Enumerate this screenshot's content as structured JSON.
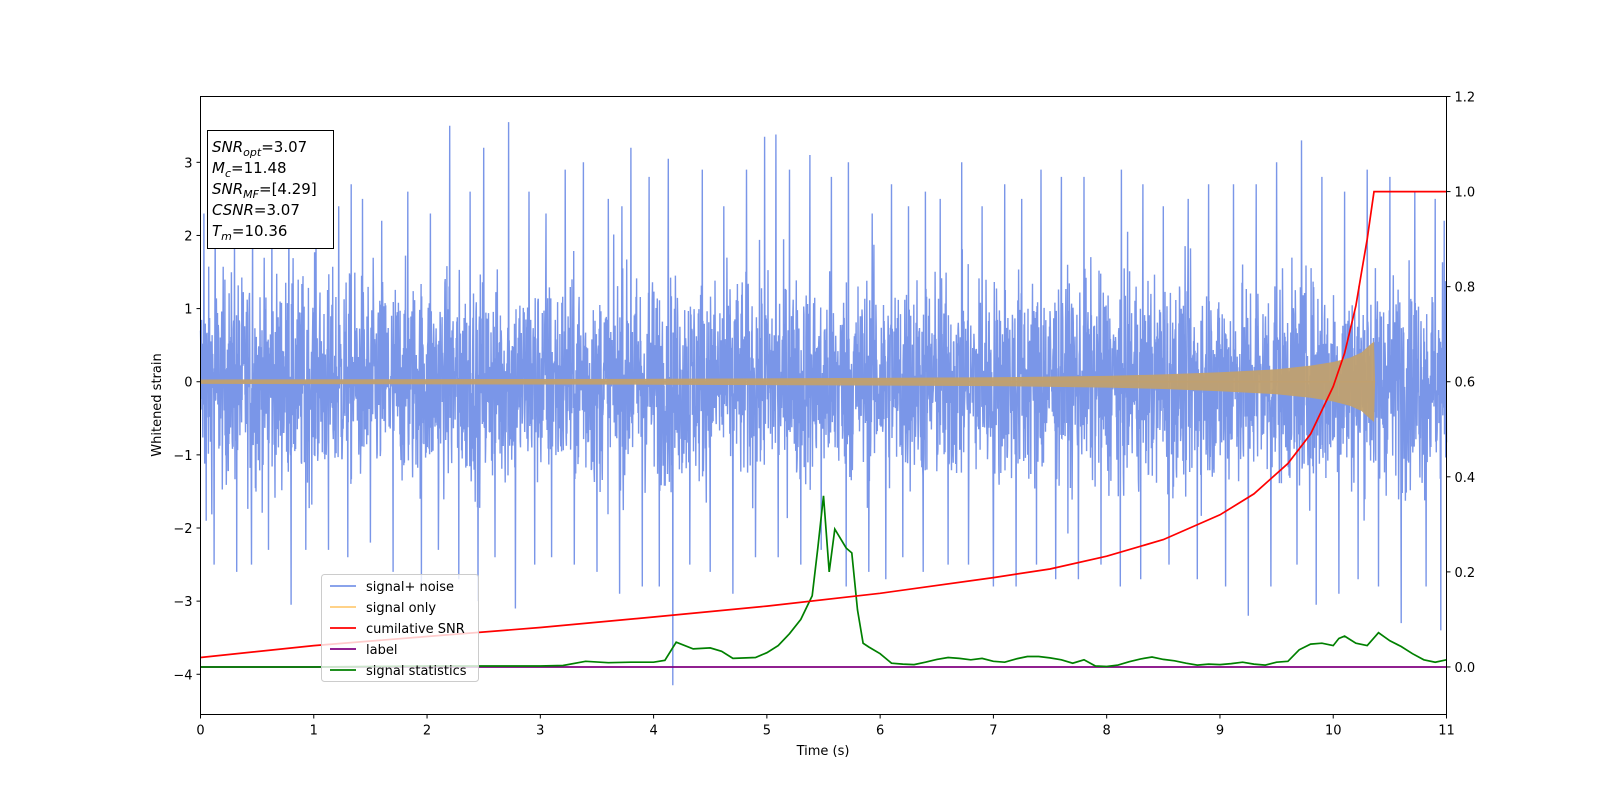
{
  "chart_data": {
    "type": "line",
    "xlabel": "Time (s)",
    "ylabel": "Whitened strain",
    "xlim": [
      0,
      11
    ],
    "ylim": [
      -4.55,
      3.9
    ],
    "y2lim": [
      -0.1,
      1.2
    ],
    "x_ticks": [
      "0",
      "1",
      "2",
      "3",
      "4",
      "5",
      "6",
      "7",
      "8",
      "9",
      "10",
      "11"
    ],
    "y_ticks": [
      "3",
      "2",
      "1",
      "0",
      "−1",
      "−2",
      "−3",
      "−4"
    ],
    "y2_ticks": [
      "1.2",
      "1.0",
      "0.8",
      "0.6",
      "0.4",
      "0.2",
      "0.0"
    ],
    "grid": false,
    "legend_position": "lower-left",
    "series": [
      {
        "name": "signal+ noise",
        "axis": "left",
        "color": "#7a96e8",
        "description_values": {
          "typical_range": [
            -2.2,
            2.2
          ],
          "max": 3.55,
          "min": -4.15
        },
        "spikes_up": [
          [
            0.03,
            2.3
          ],
          [
            0.13,
            2.2
          ],
          [
            0.3,
            2.0
          ],
          [
            0.46,
            2.2
          ],
          [
            0.63,
            2.3
          ],
          [
            0.78,
            2.5
          ],
          [
            1.02,
            2.1
          ],
          [
            1.22,
            2.4
          ],
          [
            1.33,
            2.7
          ],
          [
            1.43,
            2.5
          ],
          [
            1.6,
            2.2
          ],
          [
            1.83,
            2.6
          ],
          [
            2.03,
            2.3
          ],
          [
            2.2,
            3.5
          ],
          [
            2.38,
            2.6
          ],
          [
            2.5,
            3.2
          ],
          [
            2.72,
            3.55
          ],
          [
            2.9,
            2.6
          ],
          [
            3.05,
            2.3
          ],
          [
            3.22,
            2.9
          ],
          [
            3.38,
            3.0
          ],
          [
            3.6,
            2.5
          ],
          [
            3.72,
            2.4
          ],
          [
            3.8,
            3.2
          ],
          [
            3.96,
            2.8
          ],
          [
            4.13,
            3.05
          ],
          [
            4.32,
            2.8
          ],
          [
            4.43,
            2.9
          ],
          [
            4.62,
            2.4
          ],
          [
            4.82,
            2.9
          ],
          [
            4.98,
            3.35
          ],
          [
            5.08,
            3.38
          ],
          [
            5.2,
            2.9
          ],
          [
            5.38,
            3.1
          ],
          [
            5.57,
            2.8
          ],
          [
            5.72,
            3.0
          ],
          [
            5.93,
            2.3
          ],
          [
            6.1,
            2.7
          ],
          [
            6.25,
            2.4
          ],
          [
            6.4,
            2.6
          ],
          [
            6.53,
            2.5
          ],
          [
            6.72,
            3.0
          ],
          [
            6.9,
            2.4
          ],
          [
            7.1,
            2.7
          ],
          [
            7.25,
            2.5
          ],
          [
            7.42,
            2.9
          ],
          [
            7.6,
            2.8
          ],
          [
            7.8,
            2.8
          ],
          [
            7.95,
            2.6
          ],
          [
            8.13,
            2.9
          ],
          [
            8.32,
            2.7
          ],
          [
            8.5,
            2.4
          ],
          [
            8.72,
            2.5
          ],
          [
            8.9,
            2.7
          ],
          [
            9.12,
            2.7
          ],
          [
            9.32,
            2.7
          ],
          [
            9.5,
            3.0
          ],
          [
            9.72,
            3.3
          ],
          [
            9.9,
            2.8
          ],
          [
            10.1,
            2.6
          ],
          [
            10.3,
            2.9
          ],
          [
            10.5,
            2.8
          ],
          [
            10.72,
            2.6
          ],
          [
            10.9,
            2.5
          ],
          [
            10.98,
            2.2
          ]
        ],
        "spikes_down": [
          [
            0.05,
            -1.9
          ],
          [
            0.12,
            -2.5
          ],
          [
            0.32,
            -2.6
          ],
          [
            0.45,
            -2.5
          ],
          [
            0.6,
            -2.3
          ],
          [
            0.8,
            -3.05
          ],
          [
            0.93,
            -2.3
          ],
          [
            1.13,
            -2.3
          ],
          [
            1.3,
            -2.4
          ],
          [
            1.5,
            -2.2
          ],
          [
            1.7,
            -2.6
          ],
          [
            1.95,
            -2.8
          ],
          [
            2.1,
            -2.3
          ],
          [
            2.28,
            -2.7
          ],
          [
            2.45,
            -3.0
          ],
          [
            2.6,
            -2.4
          ],
          [
            2.78,
            -3.1
          ],
          [
            2.95,
            -2.5
          ],
          [
            3.1,
            -2.4
          ],
          [
            3.3,
            -2.5
          ],
          [
            3.5,
            -2.6
          ],
          [
            3.7,
            -2.9
          ],
          [
            3.9,
            -2.8
          ],
          [
            4.05,
            -2.8
          ],
          [
            4.17,
            -4.15
          ],
          [
            4.32,
            -2.5
          ],
          [
            4.5,
            -2.6
          ],
          [
            4.7,
            -2.9
          ],
          [
            4.9,
            -2.4
          ],
          [
            5.1,
            -2.4
          ],
          [
            5.3,
            -2.5
          ],
          [
            5.48,
            -2.3
          ],
          [
            5.7,
            -2.8
          ],
          [
            5.9,
            -2.6
          ],
          [
            6.05,
            -2.7
          ],
          [
            6.2,
            -2.4
          ],
          [
            6.38,
            -2.6
          ],
          [
            6.6,
            -2.5
          ],
          [
            6.78,
            -2.5
          ],
          [
            7.0,
            -2.8
          ],
          [
            7.2,
            -2.8
          ],
          [
            7.38,
            -2.5
          ],
          [
            7.55,
            -2.7
          ],
          [
            7.75,
            -2.7
          ],
          [
            7.95,
            -2.5
          ],
          [
            8.12,
            -2.8
          ],
          [
            8.3,
            -2.7
          ],
          [
            8.55,
            -2.5
          ],
          [
            8.8,
            -2.7
          ],
          [
            9.05,
            -2.8
          ],
          [
            9.25,
            -3.2
          ],
          [
            9.45,
            -2.8
          ],
          [
            9.68,
            -2.5
          ],
          [
            9.85,
            -3.05
          ],
          [
            10.05,
            -2.9
          ],
          [
            10.22,
            -2.7
          ],
          [
            10.4,
            -2.8
          ],
          [
            10.6,
            -3.3
          ],
          [
            10.82,
            -2.8
          ],
          [
            10.95,
            -3.4
          ]
        ]
      },
      {
        "name": "signal only",
        "axis": "left",
        "color": "#ffcc77",
        "envelope": [
          [
            0,
            0.03
          ],
          [
            4,
            0.04
          ],
          [
            7,
            0.06
          ],
          [
            8,
            0.08
          ],
          [
            8.5,
            0.1
          ],
          [
            9,
            0.13
          ],
          [
            9.5,
            0.17
          ],
          [
            9.8,
            0.22
          ],
          [
            10,
            0.27
          ],
          [
            10.15,
            0.33
          ],
          [
            10.25,
            0.4
          ],
          [
            10.32,
            0.5
          ],
          [
            10.36,
            0.55
          ],
          [
            10.37,
            0
          ]
        ]
      },
      {
        "name": "cumilative SNR",
        "axis": "right",
        "color": "#ff0000",
        "points": [
          [
            0,
            0.02
          ],
          [
            1,
            0.045
          ],
          [
            2,
            0.064
          ],
          [
            3,
            0.083
          ],
          [
            4,
            0.105
          ],
          [
            5,
            0.128
          ],
          [
            6,
            0.155
          ],
          [
            7,
            0.188
          ],
          [
            7.5,
            0.206
          ],
          [
            8,
            0.233
          ],
          [
            8.5,
            0.268
          ],
          [
            9,
            0.32
          ],
          [
            9.3,
            0.364
          ],
          [
            9.6,
            0.428
          ],
          [
            9.8,
            0.49
          ],
          [
            10,
            0.59
          ],
          [
            10.1,
            0.66
          ],
          [
            10.2,
            0.76
          ],
          [
            10.25,
            0.83
          ],
          [
            10.3,
            0.9
          ],
          [
            10.33,
            0.95
          ],
          [
            10.36,
            1.0
          ],
          [
            11,
            1.0
          ]
        ]
      },
      {
        "name": "label",
        "axis": "right",
        "color": "#800080",
        "points": [
          [
            0,
            0.0
          ],
          [
            11,
            0.0
          ]
        ]
      },
      {
        "name": "signal statistics",
        "axis": "right",
        "color": "#008000",
        "points": [
          [
            0,
            0.0
          ],
          [
            1,
            0.0
          ],
          [
            2,
            0.002
          ],
          [
            3,
            0.002
          ],
          [
            3.2,
            0.003
          ],
          [
            3.4,
            0.012
          ],
          [
            3.6,
            0.009
          ],
          [
            3.8,
            0.01
          ],
          [
            4.0,
            0.01
          ],
          [
            4.1,
            0.014
          ],
          [
            4.2,
            0.052
          ],
          [
            4.35,
            0.038
          ],
          [
            4.5,
            0.04
          ],
          [
            4.6,
            0.033
          ],
          [
            4.7,
            0.018
          ],
          [
            4.9,
            0.02
          ],
          [
            5.0,
            0.03
          ],
          [
            5.1,
            0.045
          ],
          [
            5.2,
            0.07
          ],
          [
            5.3,
            0.1
          ],
          [
            5.4,
            0.15
          ],
          [
            5.45,
            0.25
          ],
          [
            5.5,
            0.36
          ],
          [
            5.55,
            0.2
          ],
          [
            5.6,
            0.29
          ],
          [
            5.65,
            0.27
          ],
          [
            5.7,
            0.25
          ],
          [
            5.75,
            0.24
          ],
          [
            5.8,
            0.12
          ],
          [
            5.85,
            0.05
          ],
          [
            5.9,
            0.042
          ],
          [
            6.0,
            0.028
          ],
          [
            6.1,
            0.008
          ],
          [
            6.2,
            0.006
          ],
          [
            6.3,
            0.005
          ],
          [
            6.4,
            0.01
          ],
          [
            6.5,
            0.016
          ],
          [
            6.6,
            0.02
          ],
          [
            6.7,
            0.018
          ],
          [
            6.8,
            0.015
          ],
          [
            6.9,
            0.018
          ],
          [
            7.0,
            0.012
          ],
          [
            7.1,
            0.01
          ],
          [
            7.2,
            0.017
          ],
          [
            7.3,
            0.022
          ],
          [
            7.4,
            0.022
          ],
          [
            7.5,
            0.019
          ],
          [
            7.6,
            0.015
          ],
          [
            7.7,
            0.008
          ],
          [
            7.8,
            0.015
          ],
          [
            7.9,
            0.002
          ],
          [
            8.0,
            0.001
          ],
          [
            8.1,
            0.004
          ],
          [
            8.2,
            0.011
          ],
          [
            8.3,
            0.017
          ],
          [
            8.4,
            0.021
          ],
          [
            8.5,
            0.016
          ],
          [
            8.6,
            0.013
          ],
          [
            8.7,
            0.008
          ],
          [
            8.8,
            0.004
          ],
          [
            8.9,
            0.006
          ],
          [
            9.0,
            0.005
          ],
          [
            9.1,
            0.007
          ],
          [
            9.2,
            0.01
          ],
          [
            9.3,
            0.006
          ],
          [
            9.4,
            0.004
          ],
          [
            9.5,
            0.01
          ],
          [
            9.6,
            0.012
          ],
          [
            9.7,
            0.036
          ],
          [
            9.8,
            0.048
          ],
          [
            9.9,
            0.05
          ],
          [
            10.0,
            0.045
          ],
          [
            10.05,
            0.06
          ],
          [
            10.1,
            0.065
          ],
          [
            10.2,
            0.05
          ],
          [
            10.3,
            0.045
          ],
          [
            10.4,
            0.072
          ],
          [
            10.5,
            0.055
          ],
          [
            10.6,
            0.043
          ],
          [
            10.7,
            0.028
          ],
          [
            10.8,
            0.015
          ],
          [
            10.9,
            0.01
          ],
          [
            11,
            0.015
          ]
        ]
      }
    ],
    "annotation": {
      "lines": [
        {
          "name": "SNR",
          "sub": "opt",
          "value": "=3.07"
        },
        {
          "name": "M",
          "sub": "c",
          "value": "=11.48"
        },
        {
          "name": "SNR",
          "sub": "MF",
          "value": "=[4.29]"
        },
        {
          "name": "CSNR",
          "sub": "",
          "value": "=3.07"
        },
        {
          "name": "T",
          "sub": "m",
          "value": "=10.36"
        }
      ]
    }
  }
}
